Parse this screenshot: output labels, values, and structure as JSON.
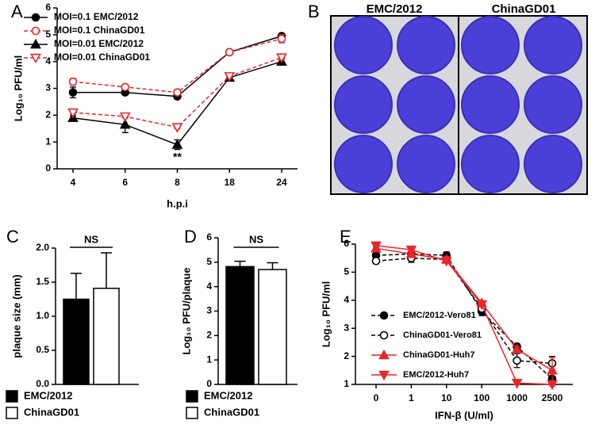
{
  "chart_data": [
    {
      "panel": "A",
      "type": "line",
      "ylabel": "Log₁₀ PFU/ml",
      "xlabel": "h.p.i",
      "categories": [
        "4",
        "6",
        "8",
        "18",
        "24"
      ],
      "ylim": [
        0,
        6
      ],
      "yticks": [
        0,
        1,
        2,
        3,
        4,
        5,
        6
      ],
      "legend": "upper left",
      "annotation": "**",
      "series": [
        {
          "name": "MOI=0.1 EMC/2012",
          "color": "#000000",
          "marker": "circle",
          "filled": true,
          "dashed": false,
          "values": [
            2.85,
            2.85,
            2.7,
            4.35,
            4.95
          ],
          "errors": [
            0.2,
            0.08,
            0.05,
            0.05,
            0.1
          ]
        },
        {
          "name": "MOI=0.1 ChinaGD01",
          "color": "#e8262a",
          "marker": "circle",
          "filled": false,
          "dashed": true,
          "values": [
            3.25,
            3.05,
            2.85,
            4.35,
            4.85
          ],
          "errors": [
            0.12,
            0.08,
            0.05,
            0.05,
            0.15
          ]
        },
        {
          "name": "MOI=0.01 EMC/2012",
          "color": "#000000",
          "marker": "triangle-up",
          "filled": true,
          "dashed": false,
          "values": [
            1.9,
            1.65,
            0.9,
            3.4,
            4.0
          ],
          "errors": [
            0.08,
            0.3,
            0.18,
            0.05,
            0.12
          ]
        },
        {
          "name": "MOI=0.01 ChinaGD01",
          "color": "#e8262a",
          "marker": "triangle-down",
          "filled": false,
          "dashed": true,
          "values": [
            2.1,
            1.95,
            1.55,
            3.45,
            4.15
          ],
          "errors": [
            0.08,
            0.05,
            0.05,
            0.05,
            0.08
          ]
        }
      ]
    },
    {
      "panel": "C",
      "type": "bar",
      "ylabel": "plaque size (mm)",
      "categories": [
        "EMC/2012",
        "ChinaGD01"
      ],
      "values": [
        1.25,
        1.41
      ],
      "errors": [
        0.38,
        0.52
      ],
      "colors": [
        "#000000",
        "#ffffff"
      ],
      "ylim": [
        0,
        2
      ],
      "yticks": [
        {
          "value": 0,
          "label": "0.0"
        },
        {
          "value": 0.5,
          "label": "0.5"
        },
        {
          "value": 1,
          "label": "1.0"
        },
        {
          "value": 1.5,
          "label": "1.5"
        },
        {
          "value": 2,
          "label": "2.0"
        }
      ],
      "legend": "below",
      "annotation": "NS"
    },
    {
      "panel": "D",
      "type": "bar",
      "ylabel": "Log₁₀ PFU/plaque",
      "categories": [
        "EMC/2012",
        "ChinaGD01"
      ],
      "values": [
        4.82,
        4.7
      ],
      "errors": [
        0.22,
        0.28
      ],
      "colors": [
        "#000000",
        "#ffffff"
      ],
      "ylim": [
        0,
        6
      ],
      "yticks": [
        0,
        1,
        2,
        3,
        4,
        5,
        6
      ],
      "legend": "below",
      "annotation": "NS"
    },
    {
      "panel": "E",
      "type": "line",
      "ylabel": "Log₁₀ PFU/ml",
      "xlabel": "IFN-β (U/ml)",
      "categories": [
        "0",
        "1",
        "10",
        "100",
        "1000",
        "2500"
      ],
      "ylim": [
        1,
        6
      ],
      "yticks": [
        1,
        2,
        3,
        4,
        5,
        6
      ],
      "legend": "center left",
      "series": [
        {
          "name": "EMC/2012-Vero81",
          "color": "#000000",
          "marker": "circle",
          "filled": true,
          "dashed": true,
          "values": [
            5.6,
            5.65,
            5.6,
            3.6,
            2.35,
            1.2
          ],
          "errors": [
            0.1,
            0.1,
            0.12,
            0.15,
            0.1,
            0.08
          ]
        },
        {
          "name": "ChinaGD01-Vero81",
          "color": "#000000",
          "marker": "circle",
          "filled": false,
          "dashed": true,
          "values": [
            5.4,
            5.5,
            5.45,
            3.7,
            1.85,
            1.75
          ],
          "errors": [
            0.1,
            0.15,
            0.1,
            0.1,
            0.25,
            0.25
          ]
        },
        {
          "name": "ChinaGD01-Huh7",
          "color": "#e8262a",
          "marker": "triangle-up",
          "filled": true,
          "dashed": false,
          "values": [
            5.85,
            5.65,
            5.45,
            3.9,
            2.25,
            1.5
          ],
          "errors": [
            0.05,
            0.1,
            0.1,
            0.08,
            0.1,
            0.45
          ]
        },
        {
          "name": "EMC/2012-Huh7",
          "color": "#e8262a",
          "marker": "triangle-down",
          "filled": true,
          "dashed": false,
          "values": [
            5.95,
            5.8,
            5.4,
            3.85,
            1.05,
            1.0
          ],
          "errors": [
            0.05,
            0.08,
            0.08,
            0.08,
            0.05,
            0.05
          ]
        }
      ]
    }
  ],
  "photo": {
    "panel": "B",
    "labels": [
      "EMC/2012",
      "ChinaGD01"
    ]
  }
}
